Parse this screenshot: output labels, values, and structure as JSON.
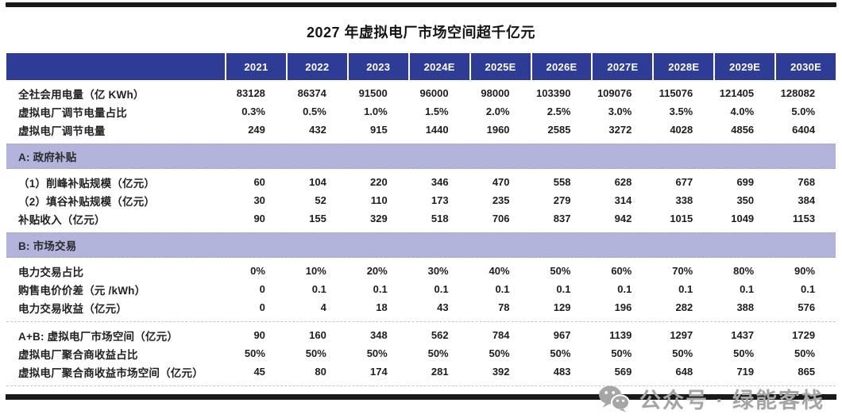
{
  "title": "2027 年虚拟电厂市场空间超千亿元",
  "colors": {
    "header_bg": "#2E3C96",
    "header_text": "#FFFFFF",
    "section_bg": "#B3B4DB",
    "rule_black": "#191919",
    "watermark_gray": "#A5A5A5"
  },
  "watermark": {
    "icon": "wechat-icon",
    "text": "公众号 · 绿能客栈"
  },
  "chart_data": {
    "type": "table",
    "title": "2027 年虚拟电厂市场空间超千亿元",
    "columns": [
      "2021",
      "2022",
      "2023",
      "2024E",
      "2025E",
      "2026E",
      "2027E",
      "2028E",
      "2029E",
      "2030E"
    ],
    "blocks": [
      {
        "type": "rows",
        "rows": [
          {
            "label": "全社会用电量（亿 KWh）",
            "values": [
              "83128",
              "86374",
              "91500",
              "96000",
              "98000",
              "103390",
              "109076",
              "115076",
              "121405",
              "128082"
            ]
          },
          {
            "label": "虚拟电厂调节电量占比",
            "values": [
              "0.3%",
              "0.5%",
              "1.0%",
              "1.5%",
              "2.0%",
              "2.5%",
              "3.0%",
              "3.5%",
              "4.0%",
              "5.0%"
            ]
          },
          {
            "label": "虚拟电厂调节电量",
            "values": [
              "249",
              "432",
              "915",
              "1440",
              "1960",
              "2585",
              "3272",
              "4028",
              "4856",
              "6404"
            ]
          }
        ]
      },
      {
        "type": "section",
        "label": "A: 政府补贴"
      },
      {
        "type": "rows",
        "rows": [
          {
            "label": "（1）削峰补贴规模（亿元）",
            "values": [
              "60",
              "104",
              "220",
              "346",
              "470",
              "558",
              "628",
              "677",
              "699",
              "768"
            ]
          },
          {
            "label": "（2）填谷补贴规模（亿元）",
            "values": [
              "30",
              "52",
              "110",
              "173",
              "235",
              "279",
              "314",
              "338",
              "350",
              "384"
            ]
          },
          {
            "label": "补贴收入（亿元）",
            "values": [
              "90",
              "155",
              "329",
              "518",
              "706",
              "837",
              "942",
              "1015",
              "1049",
              "1153"
            ]
          }
        ]
      },
      {
        "type": "section",
        "label": "B: 市场交易"
      },
      {
        "type": "rows",
        "rows": [
          {
            "label": "电力交易占比",
            "values": [
              "0%",
              "10%",
              "20%",
              "30%",
              "40%",
              "50%",
              "60%",
              "70%",
              "80%",
              "90%"
            ]
          },
          {
            "label": "购售电价价差（元 /kWh）",
            "values": [
              "0",
              "0.1",
              "0.1",
              "0.1",
              "0.1",
              "0.1",
              "0.1",
              "0.1",
              "0.1",
              "0.1"
            ]
          },
          {
            "label": "电力交易收益（亿元）",
            "values": [
              "0",
              "4",
              "18",
              "43",
              "78",
              "129",
              "196",
              "282",
              "388",
              "576"
            ]
          }
        ]
      },
      {
        "type": "divider"
      },
      {
        "type": "rows",
        "rows": [
          {
            "label": "A+B: 虚拟电厂市场空间（亿元）",
            "values": [
              "90",
              "160",
              "348",
              "562",
              "784",
              "967",
              "1139",
              "1297",
              "1437",
              "1729"
            ]
          },
          {
            "label": "虚拟电厂聚合商收益占比",
            "values": [
              "50%",
              "50%",
              "50%",
              "50%",
              "50%",
              "50%",
              "50%",
              "50%",
              "50%",
              "50%"
            ]
          },
          {
            "label": "虚拟电厂聚合商收益市场空间（亿元）",
            "values": [
              "45",
              "80",
              "174",
              "281",
              "392",
              "483",
              "569",
              "648",
              "719",
              "865"
            ]
          }
        ]
      },
      {
        "type": "divider"
      }
    ]
  }
}
